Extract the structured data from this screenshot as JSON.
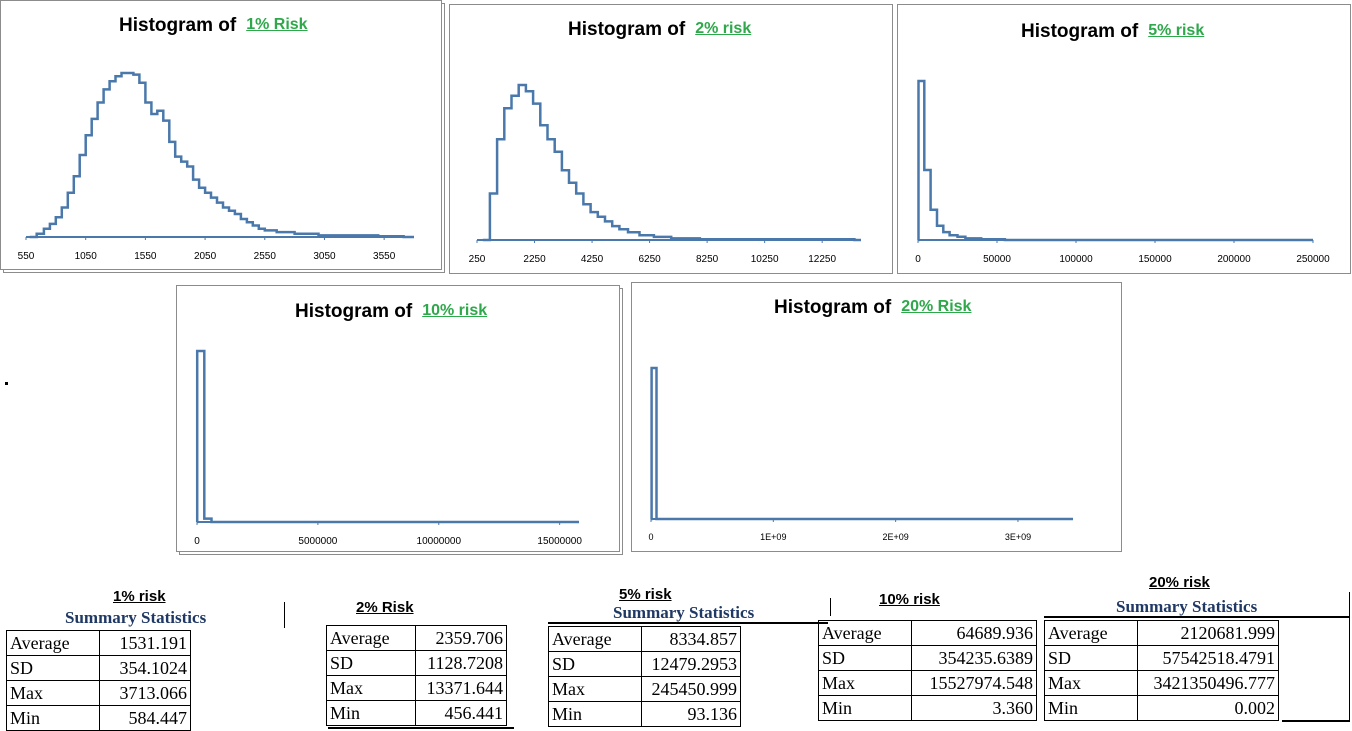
{
  "chart_data": [
    {
      "type": "histogram",
      "title_prefix": "Histogram of",
      "title_risk": "1% Risk",
      "x_ticks": [
        "550",
        "1050",
        "1550",
        "2050",
        "2550",
        "3050",
        "3550"
      ],
      "xlim": [
        550,
        3800
      ],
      "color": "#4a78ab",
      "bins": [
        [
          580,
          0.0
        ],
        [
          640,
          0.02
        ],
        [
          700,
          0.05
        ],
        [
          750,
          0.08
        ],
        [
          800,
          0.12
        ],
        [
          850,
          0.18
        ],
        [
          900,
          0.27
        ],
        [
          950,
          0.37
        ],
        [
          1000,
          0.5
        ],
        [
          1050,
          0.62
        ],
        [
          1100,
          0.72
        ],
        [
          1150,
          0.82
        ],
        [
          1200,
          0.9
        ],
        [
          1250,
          0.95
        ],
        [
          1300,
          0.98
        ],
        [
          1350,
          1.0
        ],
        [
          1400,
          1.0
        ],
        [
          1450,
          0.99
        ],
        [
          1500,
          0.94
        ],
        [
          1550,
          0.82
        ],
        [
          1600,
          0.75
        ],
        [
          1650,
          0.77
        ],
        [
          1700,
          0.71
        ],
        [
          1750,
          0.58
        ],
        [
          1800,
          0.49
        ],
        [
          1850,
          0.46
        ],
        [
          1900,
          0.43
        ],
        [
          1950,
          0.35
        ],
        [
          2000,
          0.3
        ],
        [
          2050,
          0.27
        ],
        [
          2100,
          0.24
        ],
        [
          2150,
          0.21
        ],
        [
          2200,
          0.18
        ],
        [
          2250,
          0.16
        ],
        [
          2300,
          0.14
        ],
        [
          2350,
          0.11
        ],
        [
          2400,
          0.09
        ],
        [
          2450,
          0.07
        ],
        [
          2500,
          0.05
        ],
        [
          2550,
          0.04
        ],
        [
          2650,
          0.03
        ],
        [
          2800,
          0.02
        ],
        [
          3000,
          0.01
        ],
        [
          3250,
          0.01
        ],
        [
          3500,
          0.005
        ],
        [
          3713,
          0.0
        ]
      ]
    },
    {
      "type": "histogram",
      "title_prefix": "Histogram of",
      "title_risk": "2% risk",
      "x_ticks": [
        "250",
        "2250",
        "4250",
        "6250",
        "8250",
        "10250",
        "12250"
      ],
      "xlim": [
        250,
        13600
      ],
      "color": "#4a78ab",
      "bins": [
        [
          450,
          0.0
        ],
        [
          700,
          0.3
        ],
        [
          950,
          0.65
        ],
        [
          1200,
          0.85
        ],
        [
          1450,
          0.93
        ],
        [
          1700,
          1.0
        ],
        [
          1950,
          0.96
        ],
        [
          2200,
          0.88
        ],
        [
          2450,
          0.74
        ],
        [
          2700,
          0.65
        ],
        [
          2950,
          0.57
        ],
        [
          3200,
          0.45
        ],
        [
          3450,
          0.37
        ],
        [
          3700,
          0.3
        ],
        [
          3950,
          0.23
        ],
        [
          4200,
          0.18
        ],
        [
          4450,
          0.15
        ],
        [
          4700,
          0.12
        ],
        [
          4950,
          0.09
        ],
        [
          5200,
          0.07
        ],
        [
          5500,
          0.05
        ],
        [
          5900,
          0.03
        ],
        [
          6400,
          0.02
        ],
        [
          7000,
          0.01
        ],
        [
          8000,
          0.005
        ],
        [
          13371,
          0.0
        ]
      ]
    },
    {
      "type": "histogram",
      "title_prefix": "Histogram of",
      "title_risk": "5% risk",
      "x_ticks": [
        "0",
        "50000",
        "100000",
        "150000",
        "200000",
        "250000"
      ],
      "xlim": [
        0,
        250000
      ],
      "color": "#4a78ab",
      "bins": [
        [
          93,
          0.0
        ],
        [
          300,
          1.0
        ],
        [
          4000,
          0.44
        ],
        [
          8000,
          0.19
        ],
        [
          12000,
          0.09
        ],
        [
          16000,
          0.05
        ],
        [
          20000,
          0.03
        ],
        [
          25000,
          0.02
        ],
        [
          30000,
          0.01
        ],
        [
          40000,
          0.005
        ],
        [
          55000,
          0.0
        ]
      ]
    },
    {
      "type": "histogram",
      "title_prefix": "Histogram of",
      "title_risk": "10% risk",
      "x_ticks": [
        "0",
        "5000000",
        "10000000",
        "15000000"
      ],
      "xlim": [
        0,
        15800000
      ],
      "color": "#4a78ab",
      "bins": [
        [
          3,
          0.0
        ],
        [
          10000,
          1.0
        ],
        [
          300000,
          0.02
        ],
        [
          600000,
          0.0
        ]
      ]
    },
    {
      "type": "histogram",
      "title_prefix": "Histogram of",
      "title_risk": "20% Risk",
      "x_ticks": [
        "0",
        "1E+09",
        "2E+09",
        "3E+09"
      ],
      "xlim": [
        0,
        3450000000
      ],
      "color": "#4a78ab",
      "bins": [
        [
          0.002,
          0.0
        ],
        [
          5000000,
          1.0
        ],
        [
          45000000,
          0.0
        ]
      ]
    }
  ],
  "stats": [
    {
      "heading": "1% risk",
      "subheading": "Summary Statistics",
      "rows": [
        [
          "Average",
          "1531.191"
        ],
        [
          "SD",
          "354.1024"
        ],
        [
          "Max",
          "3713.066"
        ],
        [
          "Min",
          "584.447"
        ]
      ]
    },
    {
      "heading": "2% Risk",
      "subheading": "",
      "rows": [
        [
          "Average",
          "2359.706"
        ],
        [
          "SD",
          "1128.7208"
        ],
        [
          "Max",
          "13371.644"
        ],
        [
          "Min",
          "456.441"
        ]
      ]
    },
    {
      "heading": "5% risk",
      "subheading": "Summary Statistics",
      "rows": [
        [
          "Average",
          "8334.857"
        ],
        [
          "SD",
          "12479.2953"
        ],
        [
          "Max",
          "245450.999"
        ],
        [
          "Min",
          "93.136"
        ]
      ]
    },
    {
      "heading": "10% risk",
      "subheading": "",
      "rows": [
        [
          "Average",
          "64689.936"
        ],
        [
          "SD",
          "354235.6389"
        ],
        [
          "Max",
          "15527974.548"
        ],
        [
          "Min",
          "3.360"
        ]
      ]
    },
    {
      "heading": "20% risk",
      "subheading": "Summary Statistics",
      "rows": [
        [
          "Average",
          "2120681.999"
        ],
        [
          "SD",
          "57542518.4791"
        ],
        [
          "Max",
          "3421350496.777"
        ],
        [
          "Min",
          "0.002"
        ]
      ]
    }
  ]
}
